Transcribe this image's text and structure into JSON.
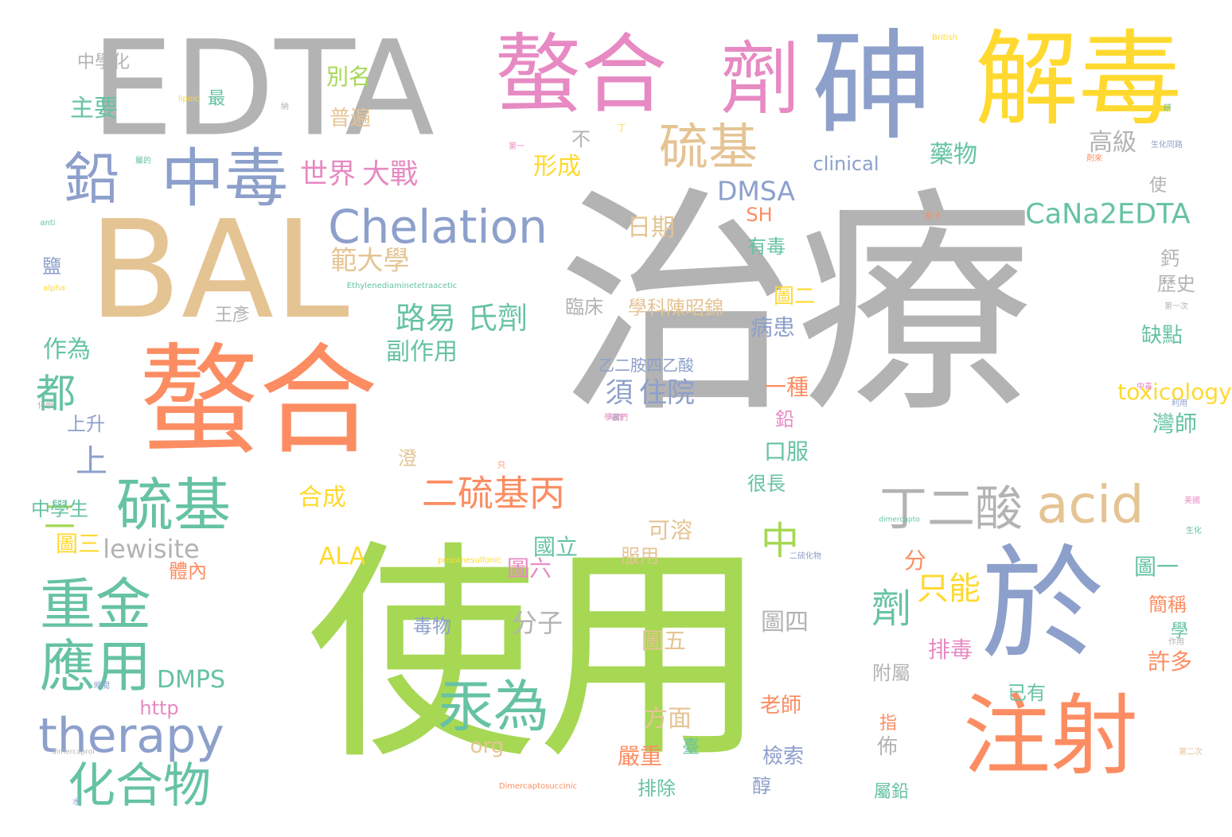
{
  "palette": {
    "grey": "#b3b3b3",
    "green": "#a6d854",
    "orange": "#fc8d62",
    "blue": "#8da0cb",
    "teal": "#66c2a5",
    "yellow": "#ffd92f",
    "tan": "#e5c494",
    "pink": "#e78ac3"
  },
  "words": [
    {
      "text": "治療",
      "color": "grey"
    },
    {
      "text": "使用",
      "color": "green"
    },
    {
      "text": "EDTA",
      "color": "grey"
    },
    {
      "text": "BAL",
      "color": "tan"
    },
    {
      "text": "螯合",
      "color": "orange"
    },
    {
      "text": "於",
      "color": "blue"
    },
    {
      "text": "砷",
      "color": "blue"
    },
    {
      "text": "解毒",
      "color": "yellow"
    },
    {
      "text": "螯合",
      "color": "pink"
    },
    {
      "text": "劑",
      "color": "pink"
    },
    {
      "text": "注射",
      "color": "orange"
    },
    {
      "text": "中毒",
      "color": "blue"
    },
    {
      "text": "鉛",
      "color": "blue"
    },
    {
      "text": "Chelation",
      "color": "blue"
    },
    {
      "text": "硫基",
      "color": "teal"
    },
    {
      "text": "硫基",
      "color": "tan"
    },
    {
      "text": "acid",
      "color": "tan"
    },
    {
      "text": "重金",
      "color": "teal"
    },
    {
      "text": "應用",
      "color": "teal"
    },
    {
      "text": "汞為",
      "color": "teal"
    },
    {
      "text": "therapy",
      "color": "blue"
    },
    {
      "text": "化合物",
      "color": "teal"
    },
    {
      "text": "丁二酸",
      "color": "grey"
    },
    {
      "text": "二硫基丙",
      "color": "orange"
    },
    {
      "text": "世界",
      "color": "pink"
    },
    {
      "text": "大戰",
      "color": "pink"
    },
    {
      "text": "都",
      "color": "teal"
    },
    {
      "text": "CaNa2EDTA",
      "color": "teal"
    },
    {
      "text": "路易",
      "color": "teal"
    },
    {
      "text": "氏劑",
      "color": "teal"
    },
    {
      "text": "DMSA",
      "color": "blue"
    },
    {
      "text": "範大學",
      "color": "tan"
    },
    {
      "text": "須",
      "color": "blue"
    },
    {
      "text": "住院",
      "color": "blue"
    },
    {
      "text": "劑",
      "color": "teal"
    },
    {
      "text": "只能",
      "color": "yellow"
    },
    {
      "text": "中",
      "color": "green"
    },
    {
      "text": "lewisite",
      "color": "grey"
    },
    {
      "text": "形成",
      "color": "yellow"
    },
    {
      "text": "日期",
      "color": "tan"
    },
    {
      "text": "別名",
      "color": "green"
    },
    {
      "text": "普遍",
      "color": "tan"
    },
    {
      "text": "主要",
      "color": "teal"
    },
    {
      "text": "中學化",
      "color": "grey"
    },
    {
      "text": "藥物",
      "color": "teal"
    },
    {
      "text": "高級",
      "color": "grey"
    },
    {
      "text": "clinical",
      "color": "blue"
    },
    {
      "text": "副作用",
      "color": "teal"
    },
    {
      "text": "作為",
      "color": "teal"
    },
    {
      "text": "上",
      "color": "blue"
    },
    {
      "text": "二",
      "color": "green"
    },
    {
      "text": "中學生",
      "color": "teal"
    },
    {
      "text": "圖三",
      "color": "yellow"
    },
    {
      "text": "合成",
      "color": "yellow"
    },
    {
      "text": "ALA",
      "color": "yellow"
    },
    {
      "text": "圖六",
      "color": "pink"
    },
    {
      "text": "國立",
      "color": "teal"
    },
    {
      "text": "可溶",
      "color": "tan"
    },
    {
      "text": "服用",
      "color": "tan"
    },
    {
      "text": "分子",
      "color": "grey"
    },
    {
      "text": "毒物",
      "color": "blue"
    },
    {
      "text": "圖五",
      "color": "tan"
    },
    {
      "text": "圖四",
      "color": "grey"
    },
    {
      "text": "口服",
      "color": "teal"
    },
    {
      "text": "很長",
      "color": "teal"
    },
    {
      "text": "一種",
      "color": "orange"
    },
    {
      "text": "病患",
      "color": "blue"
    },
    {
      "text": "圖二",
      "color": "yellow"
    },
    {
      "text": "有毒",
      "color": "teal"
    },
    {
      "text": "臨床",
      "color": "grey"
    },
    {
      "text": "學科陳昭錦",
      "color": "tan"
    },
    {
      "text": "王彥",
      "color": "grey"
    },
    {
      "text": "乙二胺四乙酸",
      "color": "blue"
    },
    {
      "text": "分",
      "color": "orange"
    },
    {
      "text": "圖一",
      "color": "teal"
    },
    {
      "text": "簡稱",
      "color": "orange"
    },
    {
      "text": "排毒",
      "color": "pink"
    },
    {
      "text": "許多",
      "color": "orange"
    },
    {
      "text": "附屬",
      "color": "grey"
    },
    {
      "text": "已有",
      "color": "teal"
    },
    {
      "text": "老師",
      "color": "orange"
    },
    {
      "text": "方面",
      "color": "tan"
    },
    {
      "text": "嚴重",
      "color": "orange"
    },
    {
      "text": "排除",
      "color": "teal"
    },
    {
      "text": "檢索",
      "color": "blue"
    },
    {
      "text": "醇",
      "color": "blue"
    },
    {
      "text": "佈",
      "color": "grey"
    },
    {
      "text": "org",
      "color": "tan"
    },
    {
      "text": "DMPS",
      "color": "teal"
    },
    {
      "text": "http",
      "color": "pink"
    },
    {
      "text": "toxicology",
      "color": "yellow"
    },
    {
      "text": "灣師",
      "color": "teal"
    },
    {
      "text": "缺點",
      "color": "teal"
    },
    {
      "text": "鈣",
      "color": "grey"
    },
    {
      "text": "歷史",
      "color": "grey"
    },
    {
      "text": "SH",
      "color": "orange"
    },
    {
      "text": "使",
      "color": "grey"
    },
    {
      "text": "不",
      "color": "grey"
    },
    {
      "text": "鹽",
      "color": "blue"
    },
    {
      "text": "鉛",
      "color": "pink"
    },
    {
      "text": "屬的",
      "color": "teal"
    },
    {
      "text": "上升",
      "color": "blue"
    },
    {
      "text": "澄",
      "color": "tan"
    },
    {
      "text": "最",
      "color": "teal"
    },
    {
      "text": "學",
      "color": "teal"
    },
    {
      "text": "臺",
      "color": "teal"
    },
    {
      "text": "指",
      "color": "orange"
    },
    {
      "text": "屬鉛",
      "color": "teal"
    },
    {
      "text": "體內",
      "color": "orange"
    },
    {
      "text": "剤來",
      "color": "orange"
    },
    {
      "text": "Ethylenediaminetetraacetic",
      "color": "teal"
    },
    {
      "text": "propanesulfonic",
      "color": "yellow"
    },
    {
      "text": "dimercapto",
      "color": "teal"
    },
    {
      "text": "dimercaprol",
      "color": "grey"
    },
    {
      "text": "Dimercaptosuccinic",
      "color": "orange"
    },
    {
      "text": "British",
      "color": "yellow"
    },
    {
      "text": "lipoic",
      "color": "yellow"
    },
    {
      "text": "alpha",
      "color": "yellow"
    },
    {
      "text": "anti",
      "color": "teal"
    },
    {
      "text": "化學",
      "color": "grey"
    },
    {
      "text": "時間",
      "color": "blue"
    },
    {
      "text": "水",
      "color": "blue"
    },
    {
      "text": "只",
      "color": "orange"
    },
    {
      "text": "生化",
      "color": "teal"
    },
    {
      "text": "美國",
      "color": "pink"
    },
    {
      "text": "二硫化物",
      "color": "blue"
    },
    {
      "text": "第一次",
      "color": "grey"
    },
    {
      "text": "第二次",
      "color": "tan"
    },
    {
      "text": "作用",
      "color": "grey"
    },
    {
      "text": "原子",
      "color": "orange"
    },
    {
      "text": "利用",
      "color": "blue"
    },
    {
      "text": "中毒",
      "color": "pink"
    },
    {
      "text": "生化同路",
      "color": "blue"
    },
    {
      "text": "研",
      "color": "teal"
    },
    {
      "text": "納",
      "color": "grey"
    },
    {
      "text": "鐵",
      "color": "teal"
    },
    {
      "text": "第一",
      "color": "pink"
    },
    {
      "text": "丁",
      "color": "yellow"
    },
    {
      "text": "高",
      "color": "blue"
    },
    {
      "text": "可作",
      "color": "grey"
    },
    {
      "text": "學家們",
      "color": "pink"
    }
  ]
}
